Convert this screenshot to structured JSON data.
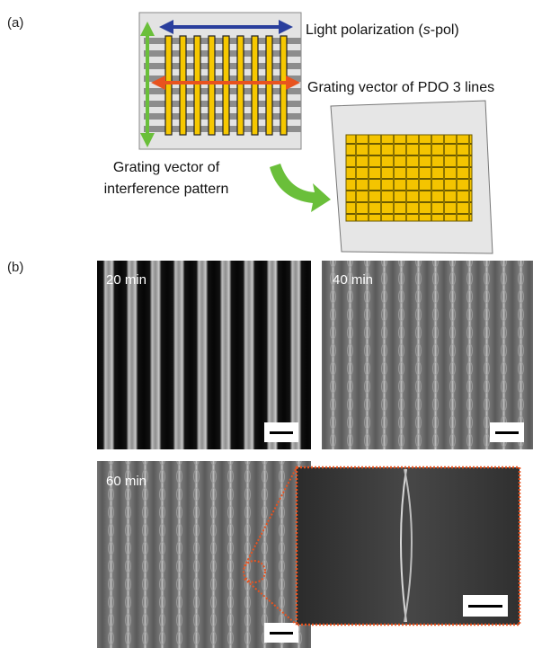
{
  "panel_a": {
    "label": "(a)",
    "polarization": [
      "Light polarization (",
      "s",
      "-pol)"
    ],
    "grating_pdo": "Grating vector of PDO 3 lines",
    "grating_interference": [
      "Grating vector of",
      "interference pattern"
    ]
  },
  "panel_b": {
    "label": "(b)",
    "images": [
      "20 min",
      "40 min",
      "60 min"
    ]
  }
}
